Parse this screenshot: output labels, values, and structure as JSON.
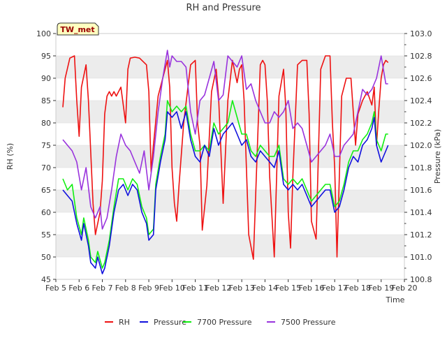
{
  "chart_data": {
    "type": "line",
    "title": "RH and Pressure",
    "badge": "TW_met",
    "xlabel": "Time",
    "ylabel_left": "RH (%)",
    "ylabel_right": "Pressure (kPa)",
    "x_range": [
      "2023-02-05",
      "2023-02-20"
    ],
    "ylim_left": [
      45,
      100
    ],
    "ylim_right": [
      100.8,
      103.0
    ],
    "x_tick_labels": [
      "Feb 5",
      "Feb 6",
      "Feb 7",
      "Feb 8",
      "Feb 9",
      "Feb 10",
      "Feb 11",
      "Feb 12",
      "Feb 13",
      "Feb 14",
      "Feb 15",
      "Feb 16",
      "Feb 17",
      "Feb 18",
      "Feb 19",
      "Feb 20"
    ],
    "y_left_ticks": [
      45,
      50,
      55,
      60,
      65,
      70,
      75,
      80,
      85,
      90,
      95,
      100
    ],
    "y_right_ticks": [
      100.8,
      101.0,
      101.2,
      101.4,
      101.6,
      101.8,
      102.0,
      102.2,
      102.4,
      102.6,
      102.8,
      103.0
    ],
    "grid": "horizontal bands",
    "legend_position": "bottom",
    "series": [
      {
        "name": "RH",
        "axis": "left",
        "color": "#ee1111",
        "x": [
          5.3,
          5.4,
          5.6,
          5.8,
          5.9,
          6.0,
          6.1,
          6.3,
          6.4,
          6.6,
          6.7,
          6.9,
          7.0,
          7.1,
          7.2,
          7.3,
          7.4,
          7.5,
          7.6,
          7.8,
          7.9,
          8.0,
          8.1,
          8.2,
          8.4,
          8.6,
          8.9,
          9.0,
          9.1,
          9.2,
          9.4,
          9.6,
          9.8,
          9.9,
          10.0,
          10.1,
          10.2,
          10.3,
          10.5,
          10.8,
          11.0,
          11.1,
          11.2,
          11.3,
          11.5,
          11.7,
          11.9,
          12.0,
          12.2,
          12.4,
          12.6,
          12.8,
          12.9,
          13.0,
          13.1,
          13.3,
          13.5,
          13.8,
          13.9,
          14.0,
          14.1,
          14.2,
          14.4,
          14.6,
          14.8,
          14.9,
          15.0,
          15.1,
          15.2,
          15.4,
          15.6,
          15.8,
          15.9,
          16.0,
          16.2,
          16.4,
          16.6,
          16.8,
          16.9,
          17.0,
          17.1,
          17.3,
          17.5,
          17.7,
          17.9,
          18.0,
          18.2,
          18.4,
          18.6,
          18.7,
          18.8,
          18.9,
          19.0,
          19.1,
          19.2,
          19.3
        ],
        "values": [
          83.5,
          90,
          94.5,
          95,
          85,
          77,
          88,
          93,
          85,
          62,
          55,
          60,
          67,
          82,
          86,
          87,
          86,
          87,
          86,
          88,
          84,
          80,
          92,
          94.5,
          94.7,
          94.5,
          93,
          87,
          69,
          75,
          86,
          90,
          94,
          88,
          70,
          62,
          58,
          66,
          80,
          93,
          94,
          80,
          75,
          56,
          66,
          87,
          92,
          86,
          62,
          85,
          94,
          89,
          92,
          93,
          85,
          55,
          49.5,
          93,
          94,
          93,
          85,
          68,
          50,
          86,
          92,
          83,
          60,
          52,
          68,
          93,
          94,
          94,
          82,
          58,
          54,
          92,
          95,
          95,
          80,
          70,
          50,
          86,
          90,
          90,
          75,
          82,
          85,
          87,
          84,
          88,
          75,
          83,
          90,
          93,
          94,
          93.5
        ]
      },
      {
        "name": "Pressure",
        "axis": "right",
        "color": "#1111dd",
        "x": [
          5.3,
          5.5,
          5.7,
          5.9,
          6.1,
          6.2,
          6.4,
          6.5,
          6.7,
          6.8,
          7.0,
          7.1,
          7.3,
          7.5,
          7.7,
          7.9,
          8.1,
          8.3,
          8.5,
          8.7,
          8.9,
          9.0,
          9.2,
          9.3,
          9.5,
          9.7,
          9.8,
          10.0,
          10.2,
          10.4,
          10.6,
          10.8,
          11.0,
          11.2,
          11.4,
          11.6,
          11.8,
          12.0,
          12.2,
          12.4,
          12.6,
          12.8,
          13.0,
          13.2,
          13.4,
          13.6,
          13.8,
          14.0,
          14.2,
          14.4,
          14.6,
          14.8,
          15.0,
          15.2,
          15.4,
          15.6,
          15.8,
          16.0,
          16.2,
          16.4,
          16.6,
          16.8,
          17.0,
          17.2,
          17.4,
          17.6,
          17.8,
          18.0,
          18.2,
          18.4,
          18.6,
          18.7,
          18.8,
          19.0,
          19.2,
          19.3
        ],
        "values": [
          101.6,
          101.55,
          101.5,
          101.3,
          101.15,
          101.3,
          101.1,
          100.95,
          100.9,
          101.0,
          100.85,
          100.9,
          101.1,
          101.4,
          101.6,
          101.65,
          101.55,
          101.65,
          101.6,
          101.4,
          101.3,
          101.15,
          101.2,
          101.6,
          101.85,
          102.05,
          102.3,
          102.25,
          102.3,
          102.15,
          102.3,
          102.05,
          101.9,
          101.85,
          102.0,
          101.9,
          102.15,
          102.0,
          102.1,
          102.15,
          102.2,
          102.1,
          102.0,
          102.05,
          101.9,
          101.85,
          101.95,
          101.9,
          101.85,
          101.8,
          101.95,
          101.65,
          101.6,
          101.65,
          101.6,
          101.65,
          101.55,
          101.45,
          101.5,
          101.55,
          101.6,
          101.6,
          101.4,
          101.45,
          101.6,
          101.8,
          101.9,
          101.85,
          102.0,
          102.05,
          102.15,
          102.25,
          102.0,
          101.85,
          101.95,
          102.0
        ]
      },
      {
        "name": "7700 Pressure",
        "axis": "right",
        "color": "#11ee11",
        "x": [
          5.3,
          5.5,
          5.7,
          5.9,
          6.1,
          6.2,
          6.4,
          6.5,
          6.7,
          6.8,
          7.0,
          7.1,
          7.3,
          7.5,
          7.7,
          7.9,
          8.1,
          8.3,
          8.5,
          8.7,
          8.9,
          9.0,
          9.2,
          9.3,
          9.5,
          9.7,
          9.8,
          10.0,
          10.2,
          10.4,
          10.6,
          10.8,
          11.0,
          11.2,
          11.4,
          11.6,
          11.8,
          12.0,
          12.2,
          12.4,
          12.6,
          12.8,
          13.0,
          13.2,
          13.4,
          13.6,
          13.8,
          14.0,
          14.2,
          14.4,
          14.6,
          14.8,
          15.0,
          15.2,
          15.4,
          15.6,
          15.8,
          16.0,
          16.2,
          16.4,
          16.6,
          16.8,
          17.0,
          17.2,
          17.4,
          17.6,
          17.8,
          18.0,
          18.2,
          18.4,
          18.6,
          18.7,
          18.8,
          19.0,
          19.2,
          19.3
        ],
        "values": [
          101.7,
          101.6,
          101.65,
          101.35,
          101.2,
          101.35,
          101.15,
          101.0,
          100.95,
          101.05,
          100.9,
          100.95,
          101.15,
          101.45,
          101.7,
          101.7,
          101.6,
          101.7,
          101.65,
          101.45,
          101.35,
          101.2,
          101.25,
          101.65,
          101.9,
          102.1,
          102.4,
          102.3,
          102.35,
          102.3,
          102.35,
          102.1,
          101.95,
          101.95,
          102.0,
          101.95,
          102.2,
          102.1,
          102.15,
          102.2,
          102.4,
          102.25,
          102.1,
          102.1,
          101.95,
          101.9,
          102.0,
          101.95,
          101.9,
          101.9,
          102.0,
          101.7,
          101.65,
          101.7,
          101.65,
          101.7,
          101.6,
          101.5,
          101.55,
          101.6,
          101.65,
          101.65,
          101.45,
          101.5,
          101.65,
          101.85,
          101.95,
          101.95,
          102.05,
          102.1,
          102.2,
          102.3,
          102.05,
          101.95,
          102.1,
          102.1
        ]
      },
      {
        "name": "7500 Pressure",
        "axis": "right",
        "color": "#9933dd",
        "x": [
          5.3,
          5.5,
          5.7,
          5.9,
          6.1,
          6.3,
          6.5,
          6.7,
          6.9,
          7.0,
          7.2,
          7.4,
          7.6,
          7.8,
          8.0,
          8.2,
          8.4,
          8.6,
          8.8,
          9.0,
          9.2,
          9.4,
          9.6,
          9.8,
          9.9,
          10.0,
          10.2,
          10.4,
          10.6,
          10.8,
          11.0,
          11.2,
          11.4,
          11.6,
          11.8,
          12.0,
          12.2,
          12.4,
          12.6,
          12.8,
          13.0,
          13.2,
          13.4,
          13.6,
          13.8,
          14.0,
          14.2,
          14.4,
          14.6,
          14.8,
          15.0,
          15.2,
          15.4,
          15.6,
          15.8,
          16.0,
          16.2,
          16.4,
          16.6,
          16.8,
          17.0,
          17.2,
          17.4,
          17.6,
          17.8,
          18.0,
          18.2,
          18.4,
          18.6,
          18.8,
          19.0,
          19.2,
          19.3
        ],
        "values": [
          102.05,
          102.0,
          101.95,
          101.85,
          101.6,
          101.8,
          101.45,
          101.35,
          101.45,
          101.25,
          101.35,
          101.6,
          101.9,
          102.1,
          102.0,
          101.95,
          101.85,
          101.75,
          101.95,
          101.6,
          101.9,
          102.3,
          102.6,
          102.85,
          102.7,
          102.8,
          102.75,
          102.75,
          102.7,
          102.3,
          102.1,
          102.4,
          102.45,
          102.6,
          102.75,
          102.4,
          102.45,
          102.8,
          102.75,
          102.7,
          102.8,
          102.5,
          102.55,
          102.4,
          102.3,
          102.2,
          102.2,
          102.3,
          102.25,
          102.3,
          102.4,
          102.15,
          102.2,
          102.15,
          102.0,
          101.85,
          101.9,
          101.95,
          102.0,
          102.1,
          101.9,
          101.9,
          102.0,
          102.05,
          102.1,
          102.3,
          102.5,
          102.45,
          102.5,
          102.6,
          102.8,
          102.55,
          102.55
        ]
      }
    ]
  }
}
